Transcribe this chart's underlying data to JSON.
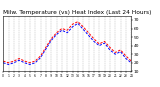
{
  "title": "Milw. Temperature (vs) Heat Index (Last 24 Hours)",
  "temp": [
    22,
    20,
    22,
    25,
    22,
    20,
    22,
    28,
    38,
    48,
    55,
    60,
    58,
    65,
    68,
    62,
    55,
    48,
    42,
    45,
    38,
    32,
    35,
    28,
    22
  ],
  "heat": [
    20,
    18,
    20,
    23,
    20,
    18,
    20,
    26,
    36,
    46,
    53,
    58,
    55,
    62,
    66,
    59,
    52,
    45,
    40,
    43,
    35,
    30,
    33,
    25,
    20
  ],
  "temp_color": "#ff0000",
  "heat_color": "#0000ff",
  "bg_color": "#ffffff",
  "grid_color": "#999999",
  "ylim_min": 10,
  "ylim_max": 75,
  "yticks": [
    10,
    20,
    30,
    40,
    50,
    60,
    70
  ],
  "title_fontsize": 4.2,
  "tick_fontsize": 3.2,
  "line_width": 0.7
}
